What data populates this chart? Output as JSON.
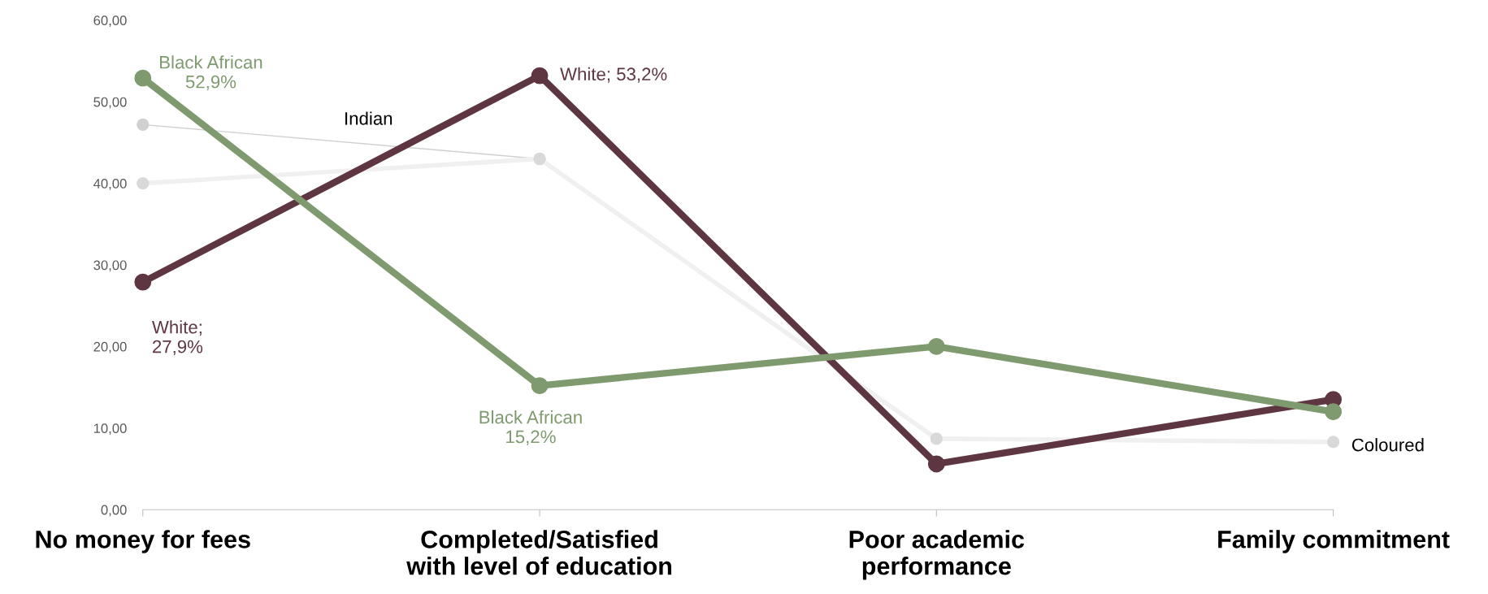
{
  "chart_data": {
    "type": "line",
    "categories": [
      "No money for fees",
      "Completed/Satisfied\nwith level of education",
      "Poor academic\nperformance",
      "Family commitment"
    ],
    "series": [
      {
        "name": "Indian",
        "color": "#d0d0d0",
        "values": [
          47.2,
          43.0,
          null,
          null
        ]
      },
      {
        "name": "Coloured",
        "color": "#d9d9d9",
        "values": [
          40.0,
          43.0,
          8.7,
          8.3
        ]
      },
      {
        "color": "#5e3642",
        "values": [
          27.9,
          53.2,
          5.6,
          13.5
        ],
        "value_labels": [
          "White;\n27,9%",
          "White; 53,2%",
          null,
          null
        ]
      },
      {
        "color": "#7f9a6e",
        "values": [
          52.9,
          15.2,
          20.0,
          12.0
        ],
        "value_labels": [
          "Black African\n52,9%",
          "Black African\n15,2%",
          null,
          null
        ]
      }
    ],
    "ylim": [
      0,
      60
    ],
    "yticks": [
      {
        "value": 0,
        "label": "0,00"
      },
      {
        "value": 10,
        "label": "10,00"
      },
      {
        "value": 20,
        "label": "20,00"
      },
      {
        "value": 30,
        "label": "30,00"
      },
      {
        "value": 40,
        "label": "40,00"
      },
      {
        "value": 50,
        "label": "50,00"
      },
      {
        "value": 60,
        "label": "60,00"
      }
    ],
    "marker": "circle",
    "grid": false,
    "legend": false
  }
}
